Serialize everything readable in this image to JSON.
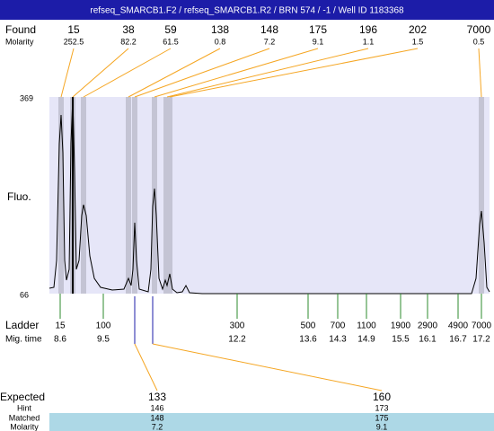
{
  "header": {
    "title": "refseq_SMARCB1.F2 / refseq_SMARCB1.R2 / BRN 574 / -1 / Well ID 1183368"
  },
  "found": {
    "label": "Found",
    "molarity_label": "Molarity",
    "peaks": [
      {
        "size": 15,
        "molarity": 252.5
      },
      {
        "size": 38,
        "molarity": 82.2
      },
      {
        "size": 59,
        "molarity": 61.5
      },
      {
        "size": 138,
        "molarity": 0.8
      },
      {
        "size": 148,
        "molarity": 7.2
      },
      {
        "size": 175,
        "molarity": 9.1
      },
      {
        "size": 196,
        "molarity": 1.1
      },
      {
        "size": 202,
        "molarity": 1.5
      },
      {
        "size": 7000,
        "molarity": 0.5
      }
    ]
  },
  "plot": {
    "y_label": "Fluo.",
    "y_max": 369,
    "y_min": 66
  },
  "ladder": {
    "label": "Ladder",
    "mig_time_label": "Mig. time",
    "peaks": [
      {
        "size": 15,
        "mig_time": 8.6
      },
      {
        "size": 100,
        "mig_time": 9.5
      },
      {
        "size": 300,
        "mig_time": 12.2
      },
      {
        "size": 500,
        "mig_time": 13.6
      },
      {
        "size": 700,
        "mig_time": 14.3
      },
      {
        "size": 1100,
        "mig_time": 14.9
      },
      {
        "size": 1900,
        "mig_time": 15.5
      },
      {
        "size": 2900,
        "mig_time": 16.1
      },
      {
        "size": 4900,
        "mig_time": 16.7
      },
      {
        "size": 7000,
        "mig_time": 17.2
      }
    ]
  },
  "expected": {
    "label": "Expected",
    "hint_label": "Hint",
    "matched_label": "Matched",
    "molarity_label": "Molarity",
    "columns": [
      {
        "expected": 133,
        "hint": 146,
        "matched": 148,
        "molarity": 7.2
      },
      {
        "expected": 160,
        "hint": 173,
        "matched": 175,
        "molarity": 9.1
      }
    ]
  }
}
